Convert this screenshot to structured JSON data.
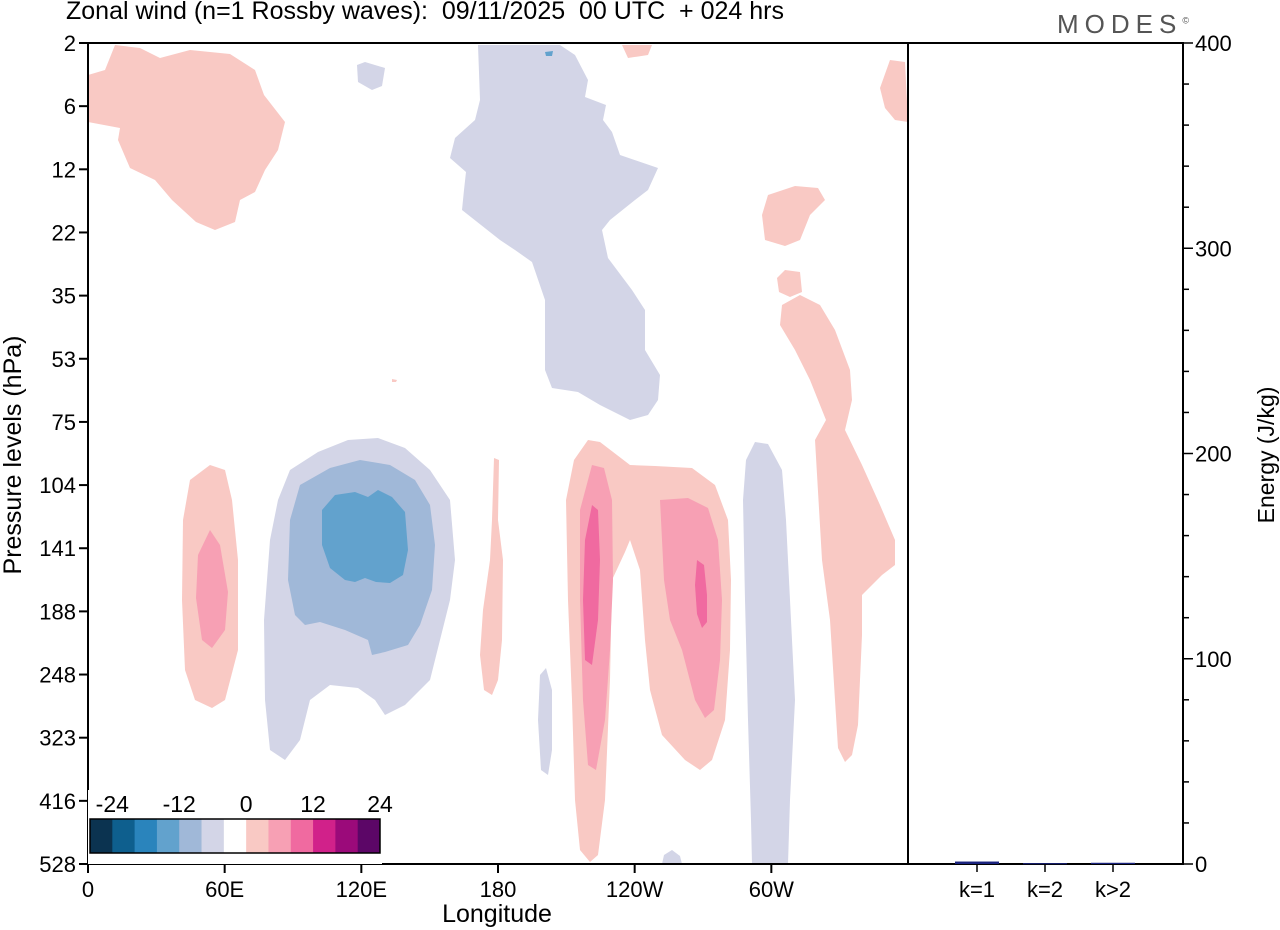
{
  "title": "Zonal wind (n=1 Rossby waves):  09/11/2025  00 UTC  + 024 hrs",
  "brand": "MODES",
  "chart_data": [
    {
      "type": "heatmap",
      "title": "Zonal wind (n=1 Rossby waves):  09/11/2025  00 UTC  + 024 hrs",
      "xlabel": "Longitude",
      "ylabel": "Pressure levels (hPa)",
      "x_ticks": [
        "0",
        "60E",
        "120E",
        "180",
        "120W",
        "60W"
      ],
      "x_tick_degrees": [
        0,
        60,
        120,
        180,
        240,
        300
      ],
      "xlim": [
        0,
        360
      ],
      "y_ticks": [
        "2",
        "6",
        "12",
        "22",
        "35",
        "53",
        "75",
        "104",
        "141",
        "188",
        "248",
        "323",
        "416",
        "528"
      ],
      "colorbar": {
        "labels": [
          "-24",
          "-12",
          "0",
          "12",
          "24"
        ],
        "levels": [
          -28,
          -24,
          -20,
          -16,
          -12,
          -8,
          -4,
          4,
          8,
          12,
          16,
          20,
          24,
          28
        ],
        "colors": [
          "#0b3350",
          "#0e5f8e",
          "#2a84bc",
          "#62a2cd",
          "#a0b8d8",
          "#d3d5e7",
          "#ffffff",
          "#f9c9c4",
          "#f7a0b4",
          "#f06aa0",
          "#d1218a",
          "#9b0a7a",
          "#5c0667"
        ]
      },
      "contours": [
        {
          "name": "warm-upper-left",
          "level": 4,
          "lon_range": [
            0,
            85
          ],
          "p_range": [
            2,
            22
          ]
        },
        {
          "name": "cool-upper-center",
          "level": -4,
          "lon_range": [
            160,
            250
          ],
          "p_range": [
            2,
            80
          ]
        },
        {
          "name": "warm-upper-right",
          "level": 4,
          "lon_range": [
            295,
            360
          ],
          "p_range": [
            2,
            416
          ]
        },
        {
          "name": "warm-west-pacific",
          "level": 8,
          "lon_range": [
            40,
            68
          ],
          "p_range": [
            100,
            280
          ]
        },
        {
          "name": "cool-maritime-continent",
          "level": -12,
          "lon_range": [
            78,
            163
          ],
          "p_range": [
            70,
            330
          ]
        },
        {
          "name": "warm-central-east",
          "level": 12,
          "lon_range": [
            210,
            282
          ],
          "p_range": [
            75,
            528
          ]
        },
        {
          "name": "cool-eastern-pacific",
          "level": -4,
          "lon_range": [
            285,
            308
          ],
          "p_range": [
            95,
            528
          ]
        }
      ]
    },
    {
      "type": "bar",
      "categories": [
        "k=1",
        "k=2",
        "k>2"
      ],
      "values": [
        1.2,
        0.4,
        0.6
      ],
      "ylabel": "Energy (J/kg)",
      "ylim": [
        0,
        400
      ],
      "y_ticks": [
        "0",
        "100",
        "200",
        "300",
        "400"
      ]
    }
  ]
}
